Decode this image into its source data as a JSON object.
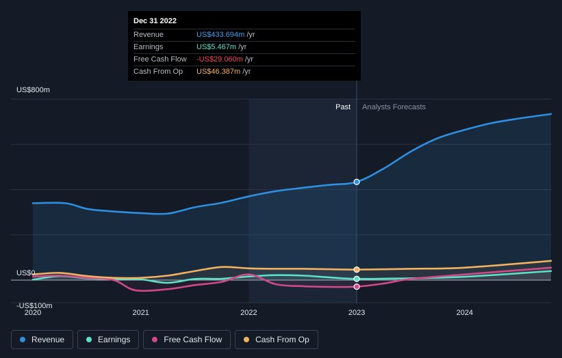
{
  "tooltip": {
    "date": "Dec 31 2022",
    "rows": [
      {
        "label": "Revenue",
        "value": "US$433.694m",
        "unit": "/yr",
        "color": "#3ea0f2"
      },
      {
        "label": "Earnings",
        "value": "US$5.467m",
        "unit": "/yr",
        "color": "#5de0c8"
      },
      {
        "label": "Free Cash Flow",
        "value": "-US$29.060m",
        "unit": "/yr",
        "color": "#f04a5a"
      },
      {
        "label": "Cash From Op",
        "value": "US$46.387m",
        "unit": "/yr",
        "color": "#f2b261"
      }
    ]
  },
  "legend": [
    {
      "label": "Revenue",
      "color": "#2f8fe0"
    },
    {
      "label": "Earnings",
      "color": "#5de0c8"
    },
    {
      "label": "Free Cash Flow",
      "color": "#d04a8a"
    },
    {
      "label": "Cash From Op",
      "color": "#f2b261"
    }
  ],
  "chart_data": {
    "type": "line",
    "y_tick_labels": [
      "US$800m",
      "US$0",
      "-US$100m"
    ],
    "ylim": [
      -100,
      800
    ],
    "x_tick_labels": [
      "2020",
      "2021",
      "2022",
      "2023",
      "2024"
    ],
    "xlim": [
      2020,
      2024.8
    ],
    "past_label": "Past",
    "forecast_label": "Analysts Forecasts",
    "divider_x": 2023.0,
    "series": [
      {
        "name": "Revenue",
        "color": "#2f8fe0",
        "x": [
          2020.0,
          2020.3,
          2020.5,
          2020.7,
          2021.0,
          2021.25,
          2021.5,
          2021.75,
          2022.0,
          2022.25,
          2022.5,
          2022.75,
          2023.0,
          2023.25,
          2023.5,
          2023.75,
          2024.0,
          2024.25,
          2024.5,
          2024.8
        ],
        "values": [
          340,
          340,
          315,
          305,
          296,
          294,
          322,
          342,
          370,
          393,
          408,
          421,
          434,
          493,
          568,
          627,
          664,
          694,
          714,
          734
        ]
      },
      {
        "name": "Earnings",
        "color": "#5de0c8",
        "x": [
          2020.0,
          2020.25,
          2020.5,
          2020.75,
          2021.0,
          2021.25,
          2021.5,
          2021.75,
          2022.0,
          2022.25,
          2022.5,
          2022.75,
          2023.0,
          2023.5,
          2024.0,
          2024.8
        ],
        "values": [
          2,
          18,
          8,
          4,
          3,
          -12,
          5,
          6,
          16,
          22,
          20,
          12,
          5.5,
          8,
          15,
          40
        ]
      },
      {
        "name": "Free Cash Flow",
        "color": "#d04a8a",
        "x": [
          2020.0,
          2020.25,
          2020.5,
          2020.75,
          2020.95,
          2021.25,
          2021.5,
          2021.75,
          2022.0,
          2022.25,
          2022.5,
          2022.75,
          2023.0,
          2023.25,
          2023.5,
          2024.0,
          2024.8
        ],
        "values": [
          15,
          20,
          10,
          0,
          -45,
          -40,
          -22,
          -8,
          25,
          -18,
          -27,
          -30,
          -29,
          -15,
          5,
          25,
          55
        ]
      },
      {
        "name": "Cash From Op",
        "color": "#f2b261",
        "x": [
          2020.0,
          2020.25,
          2020.5,
          2020.75,
          2021.0,
          2021.25,
          2021.5,
          2021.75,
          2022.0,
          2022.25,
          2022.5,
          2022.75,
          2023.0,
          2023.5,
          2024.0,
          2024.8
        ],
        "values": [
          25,
          32,
          18,
          10,
          10,
          20,
          40,
          58,
          52,
          50,
          50,
          48,
          46.4,
          50,
          55,
          85
        ]
      }
    ]
  }
}
